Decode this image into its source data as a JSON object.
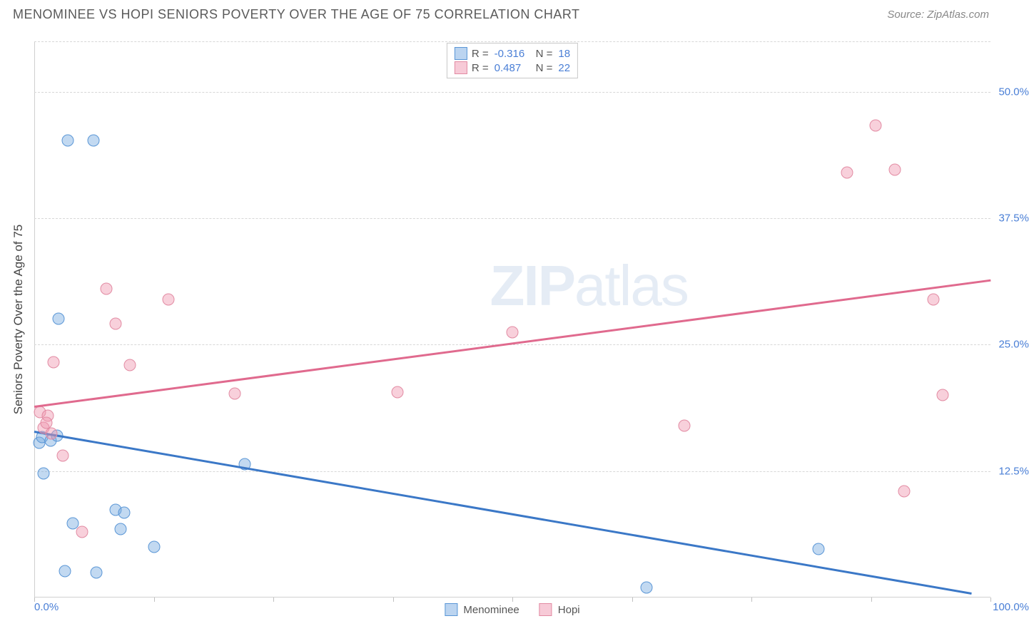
{
  "header": {
    "title": "MENOMINEE VS HOPI SENIORS POVERTY OVER THE AGE OF 75 CORRELATION CHART",
    "source_prefix": "Source: ",
    "source_name": "ZipAtlas.com"
  },
  "chart": {
    "type": "scatter",
    "ylabel": "Seniors Poverty Over the Age of 75",
    "background_color": "#ffffff",
    "grid_color": "#d7d7d7",
    "axis_color": "#d0d0d0",
    "tick_label_color": "#4a7fd6",
    "xlim": [
      0,
      100
    ],
    "ylim": [
      0,
      55
    ],
    "y_gridlines": [
      12.5,
      25.0,
      37.5,
      50.0
    ],
    "y_tick_labels": [
      "12.5%",
      "25.0%",
      "37.5%",
      "50.0%"
    ],
    "x_minor_ticks": [
      0,
      12.5,
      25,
      37.5,
      50,
      62.5,
      75,
      87.5,
      100
    ],
    "x_tick_left": "0.0%",
    "x_tick_right": "100.0%",
    "watermark_bold": "ZIP",
    "watermark_rest": "atlas",
    "series": [
      {
        "name": "Menominee",
        "color_fill": "rgba(120,170,225,0.45)",
        "color_stroke": "#5a96d6",
        "line_color": "#3b78c7",
        "marker_radius": 8.5,
        "trend": {
          "x1": 0,
          "y1": 16.5,
          "x2": 98,
          "y2": 0.5
        },
        "points": [
          {
            "x": 3.5,
            "y": 45.2
          },
          {
            "x": 6.2,
            "y": 45.2
          },
          {
            "x": 2.5,
            "y": 27.6
          },
          {
            "x": 0.5,
            "y": 15.3
          },
          {
            "x": 0.8,
            "y": 15.9
          },
          {
            "x": 1.7,
            "y": 15.5
          },
          {
            "x": 2.4,
            "y": 16.0
          },
          {
            "x": 1.0,
            "y": 12.3
          },
          {
            "x": 4.0,
            "y": 7.3
          },
          {
            "x": 8.5,
            "y": 8.7
          },
          {
            "x": 9.4,
            "y": 8.4
          },
          {
            "x": 9.0,
            "y": 6.8
          },
          {
            "x": 12.5,
            "y": 5.0
          },
          {
            "x": 3.2,
            "y": 2.6
          },
          {
            "x": 6.5,
            "y": 2.5
          },
          {
            "x": 22.0,
            "y": 13.2
          },
          {
            "x": 64.0,
            "y": 1.0
          },
          {
            "x": 82.0,
            "y": 4.8
          }
        ]
      },
      {
        "name": "Hopi",
        "color_fill": "rgba(240,150,175,0.45)",
        "color_stroke": "#e28ba3",
        "line_color": "#e06a8e",
        "marker_radius": 8.5,
        "trend": {
          "x1": 0,
          "y1": 19.0,
          "x2": 100,
          "y2": 31.5
        },
        "points": [
          {
            "x": 0.6,
            "y": 18.3
          },
          {
            "x": 1.4,
            "y": 18.0
          },
          {
            "x": 1.0,
            "y": 16.8
          },
          {
            "x": 1.3,
            "y": 17.3
          },
          {
            "x": 2.0,
            "y": 23.3
          },
          {
            "x": 3.0,
            "y": 14.0
          },
          {
            "x": 7.5,
            "y": 30.5
          },
          {
            "x": 8.5,
            "y": 27.1
          },
          {
            "x": 10.0,
            "y": 23.0
          },
          {
            "x": 14.0,
            "y": 29.5
          },
          {
            "x": 5.0,
            "y": 6.5
          },
          {
            "x": 21.0,
            "y": 20.2
          },
          {
            "x": 38.0,
            "y": 20.3
          },
          {
            "x": 50.0,
            "y": 26.2
          },
          {
            "x": 68.0,
            "y": 17.0
          },
          {
            "x": 85.0,
            "y": 42.0
          },
          {
            "x": 90.0,
            "y": 42.3
          },
          {
            "x": 88.0,
            "y": 46.7
          },
          {
            "x": 94.0,
            "y": 29.5
          },
          {
            "x": 95.0,
            "y": 20.0
          },
          {
            "x": 91.0,
            "y": 10.5
          },
          {
            "x": 1.8,
            "y": 16.2
          }
        ]
      }
    ],
    "legend_top": {
      "rows": [
        {
          "swatch": "blue",
          "r_label": "R =",
          "r_value": "-0.316",
          "n_label": "N =",
          "n_value": "18"
        },
        {
          "swatch": "pink",
          "r_label": "R =",
          "r_value": "0.487",
          "n_label": "N =",
          "n_value": "22"
        }
      ]
    },
    "legend_bottom": {
      "items": [
        {
          "swatch": "blue",
          "label": "Menominee"
        },
        {
          "swatch": "pink",
          "label": "Hopi"
        }
      ]
    }
  }
}
